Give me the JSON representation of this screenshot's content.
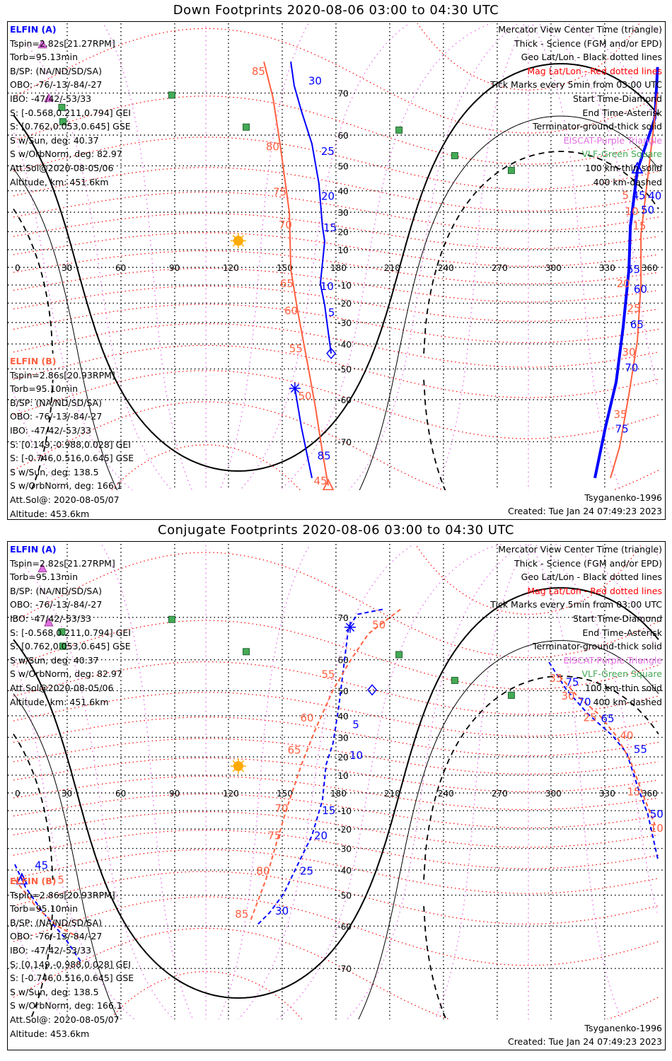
{
  "colors": {
    "elfin_a": "#0000ff",
    "elfin_b": "#ff6040",
    "mag_grid": "#ff0000",
    "mag_meridian": "#e879e8",
    "geo_grid": "#000000",
    "eiscat": "#e070e0",
    "vlf": "#44aa55",
    "sun": "#ffaa00"
  },
  "legend_right": [
    {
      "text": "Mercator View Center Time (triangle)",
      "color": "#000000"
    },
    {
      "text": "Thick - Science (FGM and/or EPD)",
      "color": "#000000"
    },
    {
      "text": "Geo Lat/Lon - Black dotted lines",
      "color": "#000000"
    },
    {
      "text": "Mag Lat/Lon - Red dotted lines",
      "color": "#ff0000"
    },
    {
      "text": "Tick Marks every 5min from 03:00 UTC",
      "color": "#000000"
    },
    {
      "text": "Start Time-Diamond",
      "color": "#000000"
    },
    {
      "text": "End Time-Asterisk",
      "color": "#000000"
    },
    {
      "text": "Terminator-ground-thick solid",
      "color": "#000000"
    },
    {
      "text": "EISCAT-Purple Triangle",
      "color": "#e070e0"
    },
    {
      "text": "VLF-Green Square",
      "color": "#44aa55"
    },
    {
      "text": "100 km-thin solid",
      "color": "#000000"
    },
    {
      "text": "400 km-dashed",
      "color": "#000000"
    }
  ],
  "elfin_a": {
    "name": "ELFIN (A)",
    "lines": [
      "Tspin=2.82s[21.27RPM]",
      "Torb=95.13min",
      "B/SP: (NA/ND/SD/SA)",
      "OBO: -76/-13/-84/-27",
      "IBO: -47/42/-53/33",
      "S: [-0.568,0.211,0.794] GEI",
      "S: [0.762,0.053,0.645] GSE",
      "S w/Sun, deg: 40.37",
      "S w/OrbNorm, deg: 82.97",
      "Att.Sol@2020-08-05/06",
      "Altitude, km: 451.6km"
    ]
  },
  "elfin_b": {
    "name": "ELFIN (B)",
    "lines": [
      "Tspin=2.86s[20.93RPM]",
      "Torb=95.10min",
      "B/SP: (NA/ND/SD/SA)",
      "OBO: -76/-13/-84/-27",
      "IBO: -47/42/-53/33",
      "S: [0.149,-0.988,0.028] GEI",
      "S: [-0.746,0.516,0.645] GSE",
      "S w/Sun, deg: 138.5",
      "S w/OrbNorm, deg: 166.1",
      "Att.Sol@: 2020-08-05/07",
      "Altitude: 453.6km"
    ]
  },
  "footer": {
    "model": "Tsyganenko-1996",
    "created": "Created: Tue Jan 24 07:49:23 2023"
  },
  "map": {
    "lon_ticks": [
      "0",
      "30",
      "60",
      "90",
      "120",
      "150",
      "180",
      "210",
      "240",
      "270",
      "300",
      "330",
      "360"
    ],
    "lat_ticks": [
      "70",
      "60",
      "50",
      "40",
      "30",
      "20",
      "10",
      "0",
      "-10",
      "-20",
      "-30",
      "-40",
      "-50",
      "-60",
      "-70"
    ],
    "sun": {
      "lon": 125.5,
      "lat": 15
    },
    "terminators": [
      {
        "name": "ground",
        "radius_deg": 90,
        "style": "thick"
      },
      {
        "name": "100 km",
        "radius_deg": 80,
        "style": "thin"
      },
      {
        "name": "400 km",
        "radius_deg": 70,
        "style": "dashed"
      }
    ],
    "mag_pole": {
      "lat": 80.6,
      "lon": 287.4
    },
    "eiscat_sites": [
      {
        "lon": 16.2,
        "lat": 77.6
      },
      {
        "lon": 19.7,
        "lat": 69.0
      }
    ],
    "vlf_sites": [
      {
        "lon": 88.4,
        "lat": 69.6
      },
      {
        "lon": 27.0,
        "lat": 67.0
      },
      {
        "lon": 27.6,
        "lat": 63.6
      },
      {
        "lon": 129.9,
        "lat": 62.2
      },
      {
        "lon": 215.2,
        "lat": 61.4
      },
      {
        "lon": 246.3,
        "lat": 53.6
      },
      {
        "lon": 277.9,
        "lat": 48.3
      }
    ]
  },
  "chart_data": [
    {
      "type": "line",
      "title": "Down Footprints 2020-08-06 03:00 to 04:30 UTC",
      "xlabel": "Geographic longitude",
      "ylabel": "Geographic latitude",
      "xlim": [
        0,
        360
      ],
      "ylim": [
        -80,
        80
      ],
      "projection": "mercator",
      "tracks": [
        {
          "sat": "a",
          "dashed": false,
          "points": [
            [
              154.8,
              75.3
            ],
            [
              156.7,
              71.4
            ],
            [
              160.7,
              66.2
            ],
            [
              166.6,
              57.4
            ],
            [
              170.5,
              43
            ],
            [
              172.5,
              22.5
            ],
            [
              173.7,
              14.6
            ],
            [
              171.3,
              -9.2
            ],
            [
              173.7,
              -21
            ],
            [
              175.3,
              -32
            ],
            [
              177.3,
              -44
            ]
          ]
        },
        {
          "sat": "a",
          "dashed": false,
          "thick": true,
          "points": [
            [
              359.5,
              74.5
            ],
            [
              358,
              64.5
            ],
            [
              348.2,
              48.3
            ],
            [
              344.3,
              22.5
            ],
            [
              343.5,
              -1.2
            ],
            [
              340.3,
              -32
            ],
            [
              336.4,
              -54.5
            ],
            [
              330.4,
              -67
            ],
            [
              324.5,
              -76
            ]
          ]
        },
        {
          "sat": "a",
          "dashed": false,
          "points": [
            [
              157.1,
              -56.6
            ],
            [
              160.7,
              -67
            ],
            [
              166.6,
              -76
            ]
          ]
        },
        {
          "sat": "b",
          "dashed": false,
          "points": [
            [
              139.8,
              75.3
            ],
            [
              144.9,
              69
            ],
            [
              148.8,
              57.4
            ],
            [
              154,
              29.8
            ],
            [
              154.8,
              -1.2
            ],
            [
              158.7,
              -24.5
            ],
            [
              164.6,
              -49.6
            ],
            [
              168.6,
              -62.3
            ],
            [
              172.5,
              -72
            ],
            [
              175.7,
              -77
            ]
          ]
        },
        {
          "sat": "b",
          "dashed": false,
          "points": [
            [
              359.5,
              70
            ],
            [
              354.1,
              46
            ],
            [
              350.2,
              18.5
            ],
            [
              350.2,
              -9.2
            ],
            [
              348.2,
              -38.7
            ],
            [
              343.5,
              -58.5
            ],
            [
              338.3,
              -71
            ],
            [
              333.2,
              -76
            ]
          ]
        }
      ],
      "tick_labels": [
        {
          "sat": "a",
          "text": "30",
          "lon": 163.4,
          "lat": 72.2
        },
        {
          "sat": "a",
          "text": "25",
          "lon": 170.5,
          "lat": 55
        },
        {
          "sat": "a",
          "text": "20",
          "lon": 174.5,
          "lat": 37.5
        },
        {
          "sat": "a",
          "text": "15",
          "lon": 177.7,
          "lat": 22
        },
        {
          "sat": "a",
          "text": "10",
          "lon": 178,
          "lat": -10.8
        },
        {
          "sat": "a",
          "text": "5",
          "lon": 178.4,
          "lat": -25
        },
        {
          "sat": "a",
          "text": "40",
          "lon": 357,
          "lat": 67
        },
        {
          "sat": "a",
          "text": "45",
          "lon": 352,
          "lat": 49.5
        },
        {
          "sat": "a",
          "text": "50",
          "lon": 349,
          "lat": 32.8
        },
        {
          "sat": "a",
          "text": "55",
          "lon": 349,
          "lat": -1.2
        },
        {
          "sat": "a",
          "text": "60",
          "lon": 345,
          "lat": -12.4
        },
        {
          "sat": "a",
          "text": "65",
          "lon": 343,
          "lat": -31
        },
        {
          "sat": "a",
          "text": "70",
          "lon": 340,
          "lat": -49.6
        },
        {
          "sat": "a",
          "text": "75",
          "lon": 334.6,
          "lat": -67.4
        },
        {
          "sat": "a",
          "text": "85",
          "lon": 168.4,
          "lat": -72.6
        },
        {
          "sat": "b",
          "text": "85",
          "lon": 131.8,
          "lat": 73.8
        },
        {
          "sat": "b",
          "text": "80",
          "lon": 139.7,
          "lat": 56.5
        },
        {
          "sat": "b",
          "text": "75",
          "lon": 143.7,
          "lat": 39.5
        },
        {
          "sat": "b",
          "text": "70",
          "lon": 146.8,
          "lat": 23.5
        },
        {
          "sat": "b",
          "text": "65",
          "lon": 147.6,
          "lat": -9.2
        },
        {
          "sat": "b",
          "text": "60",
          "lon": 150,
          "lat": -24
        },
        {
          "sat": "b",
          "text": "55",
          "lon": 152.7,
          "lat": -42
        },
        {
          "sat": "b",
          "text": "50",
          "lon": 157.7,
          "lat": -59
        },
        {
          "sat": "b",
          "text": "45",
          "lon": 166.4,
          "lat": -76.4
        },
        {
          "sat": "b",
          "text": "5",
          "lon": 354.3,
          "lat": 52
        },
        {
          "sat": "b",
          "text": "10",
          "lon": 350,
          "lat": 35.5
        },
        {
          "sat": "b",
          "text": "15",
          "lon": 344.4,
          "lat": 23
        },
        {
          "sat": "b",
          "text": "20",
          "lon": 343.3,
          "lat": -9.2
        },
        {
          "sat": "b",
          "text": "25",
          "lon": 341.3,
          "lat": -26.5
        },
        {
          "sat": "b",
          "text": "30",
          "lon": 338.5,
          "lat": -46.3
        },
        {
          "sat": "b",
          "text": "35",
          "lon": 333.8,
          "lat": -64
        }
      ],
      "markers": [
        {
          "type": "diamond",
          "sat": "a",
          "lon": 177.3,
          "lat": -44
        },
        {
          "type": "asterisk",
          "sat": "a",
          "lon": 157.1,
          "lat": -56.6
        },
        {
          "type": "triangle",
          "sat": "a",
          "lon": 348.2,
          "lat": 49
        },
        {
          "type": "triangle",
          "sat": "b",
          "lon": 175.7,
          "lat": -77
        }
      ]
    },
    {
      "type": "line",
      "title": "Conjugate Footprints 2020-08-06 03:00 to 04:30 UTC",
      "xlabel": "Geographic longitude",
      "ylabel": "Geographic latitude",
      "xlim": [
        0,
        360
      ],
      "ylim": [
        -80,
        80
      ],
      "projection": "mercator",
      "tracks": [
        {
          "sat": "a",
          "dashed": true,
          "points": [
            [
              206,
              71.5
            ],
            [
              192.3,
              70.6
            ],
            [
              187.1,
              68.2
            ],
            [
              184.4,
              58.3
            ],
            [
              181.6,
              44
            ],
            [
              178.4,
              27.2
            ],
            [
              174.5,
              15.8
            ],
            [
              172.5,
              -4
            ],
            [
              166.6,
              -23.5
            ],
            [
              158.7,
              -37.5
            ],
            [
              150.8,
              -49.5
            ],
            [
              142.9,
              -56
            ],
            [
              135.8,
              -59.8
            ]
          ]
        },
        {
          "sat": "a",
          "dashed": true,
          "points": [
            [
              298.9,
              59.3
            ],
            [
              308.7,
              50.3
            ],
            [
              320.6,
              40.8
            ],
            [
              334.4,
              30.8
            ],
            [
              342.3,
              22
            ],
            [
              348.2,
              4
            ],
            [
              354.1,
              -12
            ],
            [
              359.9,
              -36
            ]
          ]
        },
        {
          "sat": "a",
          "dashed": true,
          "points": [
            [
              0.8,
              -37.5
            ],
            [
              6.7,
              -47
            ],
            [
              16.6,
              -56
            ],
            [
              28.4,
              -63
            ],
            [
              38.3,
              -69
            ]
          ]
        },
        {
          "sat": "b",
          "dashed": true,
          "points": [
            [
              216,
              71.5
            ],
            [
              198.2,
              66.6
            ],
            [
              188.3,
              60
            ],
            [
              178.4,
              50.3
            ],
            [
              168.6,
              34
            ],
            [
              160.7,
              15.8
            ],
            [
              152.8,
              -8
            ],
            [
              146.9,
              -27
            ],
            [
              140.9,
              -44
            ],
            [
              131.9,
              -59
            ]
          ]
        },
        {
          "sat": "b",
          "dashed": true,
          "points": [
            [
              304.8,
              55
            ],
            [
              314.7,
              48
            ],
            [
              326.5,
              40.8
            ],
            [
              336.4,
              30.8
            ],
            [
              344.3,
              18
            ],
            [
              350.2,
              2
            ],
            [
              358.1,
              -18
            ]
          ]
        },
        {
          "sat": "b",
          "dashed": true,
          "points": [
            [
              0.8,
              -44
            ],
            [
              12.6,
              -54
            ],
            [
              24.5,
              -60
            ],
            [
              36.3,
              -63
            ]
          ]
        }
      ],
      "tick_labels": [
        {
          "sat": "a",
          "text": "5",
          "lon": 188,
          "lat": 36
        },
        {
          "sat": "a",
          "text": "10",
          "lon": 182.4,
          "lat": 20.7
        },
        {
          "sat": "a",
          "text": "15",
          "lon": 173,
          "lat": -10
        },
        {
          "sat": "a",
          "text": "20",
          "lon": 166.6,
          "lat": -23.5
        },
        {
          "sat": "a",
          "text": "25",
          "lon": 158.7,
          "lat": -40.5
        },
        {
          "sat": "a",
          "text": "30",
          "lon": 144.9,
          "lat": -55.4
        },
        {
          "sat": "a",
          "text": "45",
          "lon": 10.7,
          "lat": -42.5
        },
        {
          "sat": "a",
          "text": "50",
          "lon": 356,
          "lat": -12
        },
        {
          "sat": "a",
          "text": "55",
          "lon": 345,
          "lat": 24
        },
        {
          "sat": "a",
          "text": "65",
          "lon": 326.7,
          "lat": 38.7
        },
        {
          "sat": "a",
          "text": "70",
          "lon": 317.6,
          "lat": 45.7
        },
        {
          "sat": "a",
          "text": "75",
          "lon": 310.9,
          "lat": 53
        },
        {
          "sat": "b",
          "text": "50",
          "lon": 199,
          "lat": 68.5
        },
        {
          "sat": "b",
          "text": "55",
          "lon": 170.7,
          "lat": 55.6
        },
        {
          "sat": "b",
          "text": "60",
          "lon": 158.9,
          "lat": 39
        },
        {
          "sat": "b",
          "text": "65",
          "lon": 151.8,
          "lat": 23.5
        },
        {
          "sat": "b",
          "text": "70",
          "lon": 144.7,
          "lat": -8.8
        },
        {
          "sat": "b",
          "text": "75",
          "lon": 140.7,
          "lat": -23.5
        },
        {
          "sat": "b",
          "text": "80",
          "lon": 134.4,
          "lat": -40.5
        },
        {
          "sat": "b",
          "text": "85",
          "lon": 122.5,
          "lat": -56.5
        },
        {
          "sat": "b",
          "text": "35",
          "lon": 305.7,
          "lat": 54.3
        },
        {
          "sat": "b",
          "text": "30",
          "lon": 316.4,
          "lat": 48
        },
        {
          "sat": "b",
          "text": "25",
          "lon": 326.7,
          "lat": 40.8
        },
        {
          "sat": "b",
          "text": "40",
          "lon": 337.3,
          "lat": 30.8
        },
        {
          "sat": "b",
          "text": "15",
          "lon": 347.2,
          "lat": 0.6
        },
        {
          "sat": "b",
          "text": "10",
          "lon": 356,
          "lat": -15.8
        },
        {
          "sat": "b",
          "text": "5",
          "lon": 11.6,
          "lat": -47
        }
      ],
      "markers": [
        {
          "type": "diamond",
          "sat": "a",
          "lon": 200.2,
          "lat": 50.3
        },
        {
          "type": "asterisk",
          "sat": "a",
          "lon": 187.9,
          "lat": 68
        },
        {
          "type": "triangle",
          "sat": "a",
          "lon": 4.7,
          "lat": -44
        }
      ]
    }
  ]
}
